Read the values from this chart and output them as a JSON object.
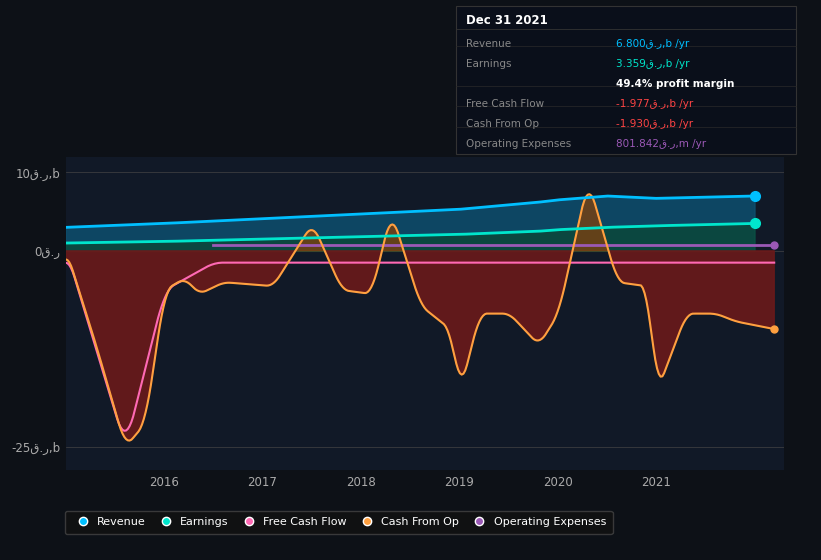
{
  "bg_color": "#0d1117",
  "plot_bg_color": "#111927",
  "ylim": [
    -28,
    12
  ],
  "ytick_labels": [
    "-25ق.ر,b",
    "0ق.ر",
    "10ق.ر,b"
  ],
  "ytick_vals": [
    -25,
    0,
    10
  ],
  "xtick_labels": [
    "2016",
    "2017",
    "2018",
    "2019",
    "2020",
    "2021"
  ],
  "xtick_vals": [
    2016,
    2017,
    2018,
    2019,
    2020,
    2021
  ],
  "xlim": [
    2015.0,
    2022.3
  ],
  "colors": {
    "revenue": "#00bfff",
    "earnings": "#00e5cc",
    "free_cash_flow": "#ff69b4",
    "cash_from_op": "#ffa040",
    "operating_expenses": "#9b59b6",
    "fill_revenue_earnings": "#0d4f6e",
    "fill_earnings_zero": "#0a5045",
    "fill_cash_neg": "#6b1a1a",
    "fill_cash_pos": "#7a4010"
  },
  "info_box": {
    "date": "Dec 31 2021",
    "rows": [
      {
        "label": "Revenue",
        "value": "6.800ق.ر,b /yr",
        "value_color": "#00bfff",
        "bold_val": false
      },
      {
        "label": "Earnings",
        "value": "3.359ق.ر,b /yr",
        "value_color": "#00e5cc",
        "bold_val": false
      },
      {
        "label": "",
        "value": "49.4% profit margin",
        "value_color": "#ffffff",
        "bold_val": true
      },
      {
        "label": "Free Cash Flow",
        "value": "-1.977ق.ر,b /yr",
        "value_color": "#ff4444",
        "bold_val": false
      },
      {
        "label": "Cash From Op",
        "value": "-1.930ق.ر,b /yr",
        "value_color": "#ff4444",
        "bold_val": false
      },
      {
        "label": "Operating Expenses",
        "value": "801.842ق.ر,m /yr",
        "value_color": "#9b59b6",
        "bold_val": false
      }
    ]
  },
  "legend": [
    {
      "label": "Revenue",
      "color": "#00bfff"
    },
    {
      "label": "Earnings",
      "color": "#00e5cc"
    },
    {
      "label": "Free Cash Flow",
      "color": "#ff69b4"
    },
    {
      "label": "Cash From Op",
      "color": "#ffa040"
    },
    {
      "label": "Operating Expenses",
      "color": "#9b59b6"
    }
  ]
}
